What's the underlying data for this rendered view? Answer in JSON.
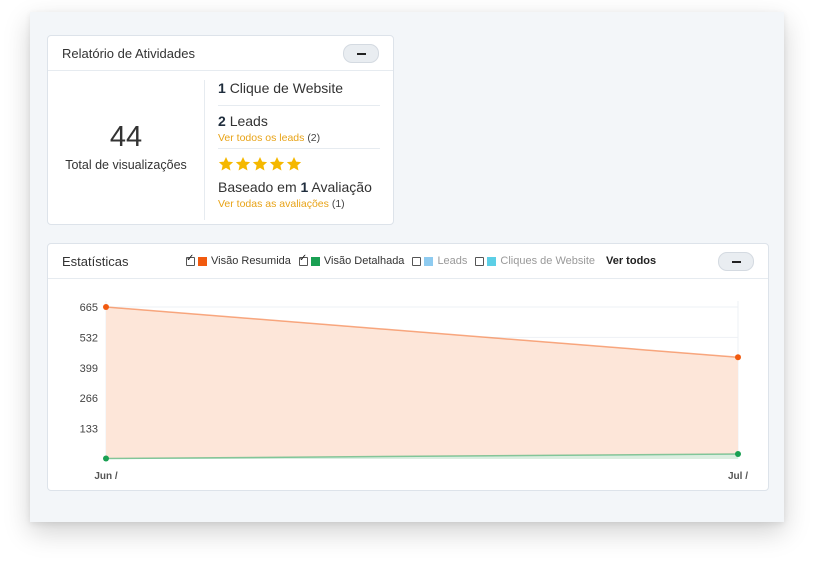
{
  "activity": {
    "title": "Relatório de Atividades",
    "total_views": "44",
    "total_views_label": "Total de visualizações",
    "website_clicks_count": "1",
    "website_clicks_label": "Clique de Website",
    "leads_count": "2",
    "leads_label": "Leads",
    "leads_link": "Ver todos os leads",
    "leads_link_count": "(2)",
    "rating_stars": 5,
    "based_on_prefix": "Baseado em",
    "review_count": "1",
    "review_label": "Avaliação",
    "reviews_link": "Ver todas as avaliações",
    "reviews_link_count": "(1)",
    "colors": {
      "star": "#f5b800",
      "link": "#e8a317"
    }
  },
  "stats": {
    "title": "Estatísticas",
    "legend": [
      {
        "label": "Visão Resumida",
        "checked": true,
        "color": "#f15a0f"
      },
      {
        "label": "Visão Detalhada",
        "checked": true,
        "color": "#1aa053"
      },
      {
        "label": "Leads",
        "checked": false,
        "color": "#8ecbf0"
      },
      {
        "label": "Cliques de Website",
        "checked": false,
        "color": "#5ccfe6"
      }
    ],
    "view_all": "Ver todos"
  },
  "chart_data": {
    "type": "area",
    "x": [
      "Jun /",
      "Jul /"
    ],
    "yticks": [
      133,
      266,
      399,
      532,
      665
    ],
    "ylim": [
      0,
      665
    ],
    "grid": true,
    "series": [
      {
        "name": "Visão Resumida",
        "values": [
          665,
          445
        ],
        "color": "#f15a0f",
        "fill": "#fde6d9"
      },
      {
        "name": "Visão Detalhada",
        "values": [
          2,
          22
        ],
        "color": "#1aa053",
        "fill": "#dbeee0"
      }
    ]
  }
}
